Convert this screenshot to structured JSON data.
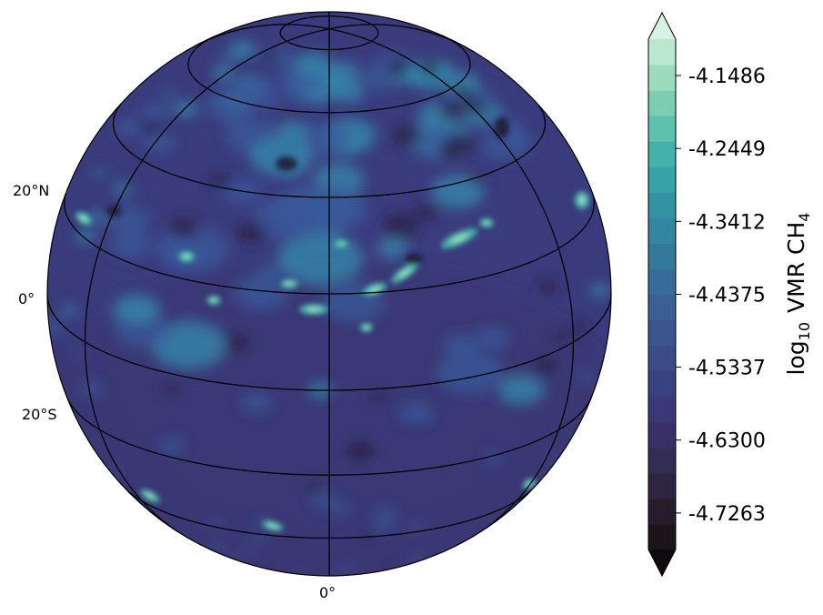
{
  "map": {
    "projection": "orthographic",
    "variable": "VMR CH4",
    "lat_labels": [
      "20°N",
      "0°",
      "20°S"
    ],
    "lon_label": "0°",
    "gridline_color": "#000000",
    "field_colors": {
      "dark": "#2a2147",
      "base": "#3b3c7e",
      "mid": "#3a5a99",
      "light": "#348bad",
      "bright": "#45c0ae",
      "peak": "#9be3c4"
    }
  },
  "colorbar": {
    "label_prefix": "log",
    "label_sub": "10",
    "label_main": "VMR CH",
    "label_sub2": "4",
    "ticks": [
      "-4.1486",
      "-4.2449",
      "-4.3412",
      "-4.4375",
      "-4.5337",
      "-4.6300",
      "-4.7263"
    ],
    "tick_values": [
      -4.1486,
      -4.2449,
      -4.3412,
      -4.4375,
      -4.5337,
      -4.63,
      -4.7263
    ],
    "range": [
      -4.7745,
      -4.1005
    ],
    "extend": "both",
    "colors": [
      "#0f0a0d",
      "#1b1419",
      "#261d2c",
      "#2d2541",
      "#332c55",
      "#392f69",
      "#3a3877",
      "#3a4181",
      "#3b4b88",
      "#3b568e",
      "#3b6193",
      "#386c98",
      "#34799b",
      "#32869f",
      "#3293a3",
      "#37a3a8",
      "#45b1ab",
      "#5dc2ad",
      "#7ccdb2",
      "#9cdbbe",
      "#bbe7ce",
      "#d7f1e4"
    ]
  }
}
